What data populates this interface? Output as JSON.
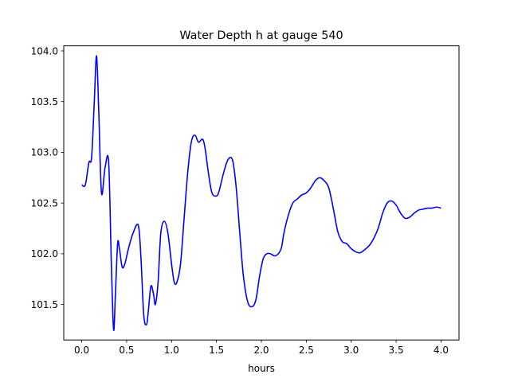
{
  "chart_data": {
    "type": "line",
    "title": "Water Depth h at gauge 540",
    "xlabel": "hours",
    "ylabel": "",
    "xlim": [
      -0.2,
      4.2
    ],
    "ylim": [
      101.15,
      104.05
    ],
    "xticks": [
      0.0,
      0.5,
      1.0,
      1.5,
      2.0,
      2.5,
      3.0,
      3.5,
      4.0
    ],
    "xtick_labels": [
      "0.0",
      "0.5",
      "1.0",
      "1.5",
      "2.0",
      "2.5",
      "3.0",
      "3.5",
      "4.0"
    ],
    "yticks": [
      101.5,
      102.0,
      102.5,
      103.0,
      103.5,
      104.0
    ],
    "ytick_labels": [
      "101.5",
      "102.0",
      "102.5",
      "103.0",
      "103.5",
      "104.0"
    ],
    "grid": false,
    "legend": "none",
    "series": [
      {
        "color": "#0000ff",
        "x": [
          0.0,
          0.04,
          0.08,
          0.11,
          0.14,
          0.165,
          0.19,
          0.22,
          0.26,
          0.3,
          0.33,
          0.355,
          0.375,
          0.4,
          0.42,
          0.45,
          0.48,
          0.52,
          0.57,
          0.63,
          0.66,
          0.69,
          0.72,
          0.74,
          0.77,
          0.8,
          0.82,
          0.85,
          0.88,
          0.92,
          0.96,
          1.0,
          1.03,
          1.06,
          1.1,
          1.14,
          1.18,
          1.22,
          1.26,
          1.3,
          1.34,
          1.36,
          1.38,
          1.41,
          1.45,
          1.5,
          1.53,
          1.58,
          1.63,
          1.68,
          1.72,
          1.76,
          1.8,
          1.85,
          1.9,
          1.94,
          1.98,
          2.02,
          2.06,
          2.1,
          2.16,
          2.22,
          2.25,
          2.3,
          2.35,
          2.4,
          2.45,
          2.5,
          2.55,
          2.6,
          2.65,
          2.7,
          2.75,
          2.8,
          2.85,
          2.9,
          2.95,
          3.0,
          3.05,
          3.1,
          3.15,
          3.2,
          3.25,
          3.3,
          3.35,
          3.4,
          3.45,
          3.5,
          3.55,
          3.6,
          3.65,
          3.7,
          3.75,
          3.8,
          3.85,
          3.9,
          3.95,
          4.0
        ],
        "y": [
          102.68,
          102.68,
          102.9,
          102.95,
          103.5,
          103.95,
          103.4,
          102.6,
          102.85,
          102.9,
          101.9,
          101.25,
          101.6,
          102.1,
          102.05,
          101.87,
          101.9,
          102.05,
          102.2,
          102.28,
          101.95,
          101.4,
          101.3,
          101.42,
          101.68,
          101.6,
          101.5,
          101.72,
          102.2,
          102.32,
          102.2,
          101.9,
          101.72,
          101.72,
          101.9,
          102.35,
          102.8,
          103.1,
          103.17,
          103.1,
          103.13,
          103.1,
          103.0,
          102.8,
          102.6,
          102.57,
          102.62,
          102.8,
          102.93,
          102.92,
          102.65,
          102.2,
          101.78,
          101.52,
          101.48,
          101.55,
          101.78,
          101.95,
          102.0,
          102.0,
          101.98,
          102.05,
          102.2,
          102.38,
          102.5,
          102.54,
          102.58,
          102.6,
          102.65,
          102.72,
          102.75,
          102.72,
          102.65,
          102.45,
          102.22,
          102.12,
          102.1,
          102.05,
          102.02,
          102.01,
          102.04,
          102.08,
          102.15,
          102.25,
          102.4,
          102.5,
          102.52,
          102.48,
          102.4,
          102.35,
          102.36,
          102.4,
          102.43,
          102.44,
          102.45,
          102.45,
          102.46,
          102.45
        ]
      }
    ]
  }
}
